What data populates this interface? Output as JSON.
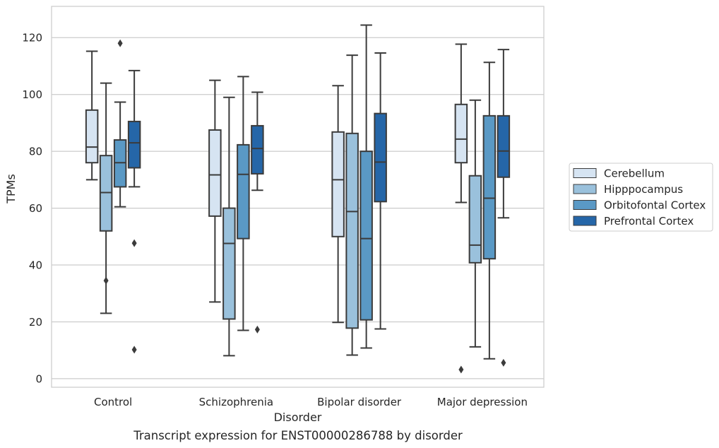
{
  "chart_data": {
    "type": "box",
    "caption": "Transcript expression for ENST00000286788 by disorder",
    "xlabel": "Disorder",
    "ylabel": "TPMs",
    "ylim": [
      -3,
      131
    ],
    "yticks": [
      0,
      20,
      40,
      60,
      80,
      100,
      120
    ],
    "grid": "horizontal",
    "legend_position": "right",
    "categories": [
      "Control",
      "Schizophrenia",
      "Bipolar disorder",
      "Major depression"
    ],
    "series": [
      {
        "name": "Cerebellum",
        "color": "#d6e4f2",
        "boxes": [
          {
            "whisker_low": 70,
            "q1": 76,
            "median": 81.5,
            "q3": 94.5,
            "whisker_high": 115.2,
            "outliers": []
          },
          {
            "whisker_low": 27,
            "q1": 57.2,
            "median": 71.7,
            "q3": 87.5,
            "whisker_high": 105,
            "outliers": []
          },
          {
            "whisker_low": 19.8,
            "q1": 50,
            "median": 70,
            "q3": 86.8,
            "whisker_high": 103.1,
            "outliers": []
          },
          {
            "whisker_low": 62,
            "q1": 76,
            "median": 84.3,
            "q3": 96.5,
            "whisker_high": 117.7,
            "outliers": [
              3.2
            ]
          }
        ]
      },
      {
        "name": "Hipppocampus",
        "color": "#9ac1dc",
        "boxes": [
          {
            "whisker_low": 23,
            "q1": 52,
            "median": 65.5,
            "q3": 78.5,
            "whisker_high": 104,
            "outliers": [
              34.5
            ]
          },
          {
            "whisker_low": 8.1,
            "q1": 21,
            "median": 47.6,
            "q3": 60,
            "whisker_high": 99,
            "outliers": []
          },
          {
            "whisker_low": 8.3,
            "q1": 17.8,
            "median": 58.8,
            "q3": 86.3,
            "whisker_high": 113.8,
            "outliers": []
          },
          {
            "whisker_low": 11.2,
            "q1": 40.8,
            "median": 47,
            "q3": 71.4,
            "whisker_high": 98,
            "outliers": []
          }
        ]
      },
      {
        "name": "Orbitofontal Cortex",
        "color": "#5a99c5",
        "boxes": [
          {
            "whisker_low": 60.5,
            "q1": 67.5,
            "median": 76,
            "q3": 84,
            "whisker_high": 97.3,
            "outliers": [
              118
            ]
          },
          {
            "whisker_low": 17,
            "q1": 49.3,
            "median": 71.9,
            "q3": 82.3,
            "whisker_high": 106.3,
            "outliers": []
          },
          {
            "whisker_low": 10.8,
            "q1": 20.7,
            "median": 49.3,
            "q3": 80,
            "whisker_high": 124.4,
            "outliers": []
          },
          {
            "whisker_low": 7,
            "q1": 42.2,
            "median": 63.5,
            "q3": 92.5,
            "whisker_high": 111.3,
            "outliers": []
          }
        ]
      },
      {
        "name": "Prefrontal Cortex",
        "color": "#2566a8",
        "boxes": [
          {
            "whisker_low": 67.5,
            "q1": 74.2,
            "median": 83,
            "q3": 90.5,
            "whisker_high": 108.4,
            "outliers": [
              47.7,
              10.2
            ]
          },
          {
            "whisker_low": 66.3,
            "q1": 72.1,
            "median": 81,
            "q3": 89,
            "whisker_high": 100.8,
            "outliers": [
              17.3
            ]
          },
          {
            "whisker_low": 17.5,
            "q1": 62.3,
            "median": 76.2,
            "q3": 93.3,
            "whisker_high": 114.6,
            "outliers": []
          },
          {
            "whisker_low": 56.6,
            "q1": 70.9,
            "median": 80.1,
            "q3": 92.5,
            "whisker_high": 115.8,
            "outliers": [
              5.6
            ]
          }
        ]
      }
    ]
  }
}
